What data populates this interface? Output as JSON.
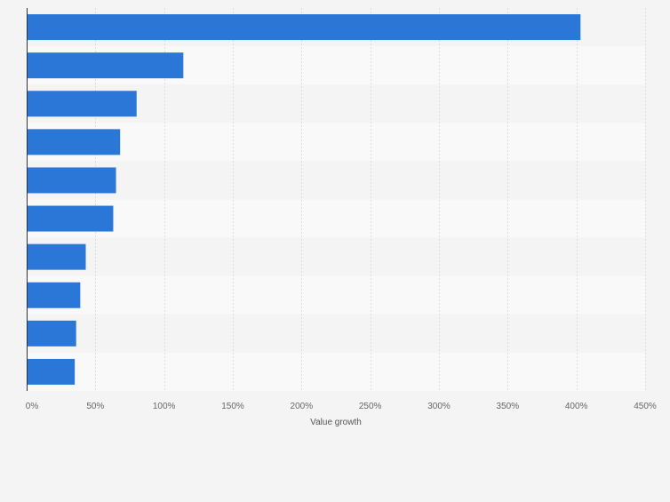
{
  "chart_data": {
    "type": "bar",
    "orientation": "horizontal",
    "categories": [
      "",
      "",
      "",
      "",
      "",
      "",
      "",
      "",
      "",
      ""
    ],
    "values": [
      403,
      114,
      80,
      68,
      65,
      63,
      43,
      39,
      36,
      35
    ],
    "xlabel": "Value growth",
    "xlim": [
      0,
      450
    ],
    "xticks": [
      0,
      50,
      100,
      150,
      200,
      250,
      300,
      350,
      400,
      450
    ],
    "xtick_labels": [
      "0%",
      "50%",
      "100%",
      "150%",
      "200%",
      "250%",
      "300%",
      "350%",
      "400%",
      "450%"
    ],
    "grid": true,
    "bar_color": "#2b77d8",
    "band_colors": [
      "#f4f4f4",
      "#f9f9f9"
    ]
  }
}
